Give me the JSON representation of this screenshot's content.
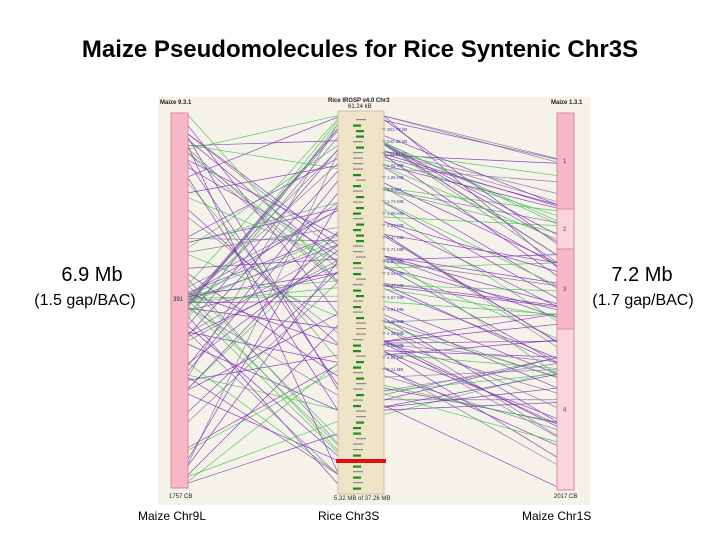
{
  "title": "Maize Pseudomolecules for Rice Syntenic Chr3S",
  "left_chrom": {
    "header": "Maize 9.3.1",
    "mid_label": "391",
    "bottom_label": "1757 CB",
    "caption": "Maize Chr9L",
    "size": "6.9 Mb",
    "gap": "(1.5 gap/BAC)"
  },
  "right_chrom": {
    "header": "Maize 1.3.1",
    "segments": [
      "1",
      "2",
      "3",
      "4"
    ],
    "bottom_label": "2017 CB",
    "caption": "Maize Chr1S",
    "size": "7.2 Mb",
    "gap": "(1.7 gap/BAC)"
  },
  "center_chrom": {
    "header": "Rice IRGSP v4.0 Chr3",
    "top_label": "61.24 kB",
    "bottom_label": "5.32 MB of 37.26 MB",
    "caption": "Rice Chr3S",
    "ticks": [
      "301.77 kB",
      "542.35 kB",
      "782.91 kB",
      "1.02 MB",
      "1.26 MB",
      "1.5 MB",
      "1.74 MB",
      "1.98 MB",
      "2.23 MB",
      "2.47 MB",
      "2.71 MB",
      "2.95 MB",
      "3.19 MB",
      "3.43 MB",
      "3.67 MB",
      "3.91 MB",
      "4.15 MB",
      "4.39 MB",
      "4.63 MB",
      "4.87 MB",
      "5.11 MB"
    ]
  },
  "colors": {
    "maize_chrom": "#f9b8c8",
    "maize_border": "#d98ca0",
    "rice_chrom": "#efe3c8",
    "purple_link": "#7a2ab8",
    "green_link": "#3bbf4e",
    "gray_link": "#7a6f99",
    "rice_marker_green": "#1f8c1f",
    "rice_marker_gray": "#8a8a8a",
    "highlight": "#e01010"
  }
}
